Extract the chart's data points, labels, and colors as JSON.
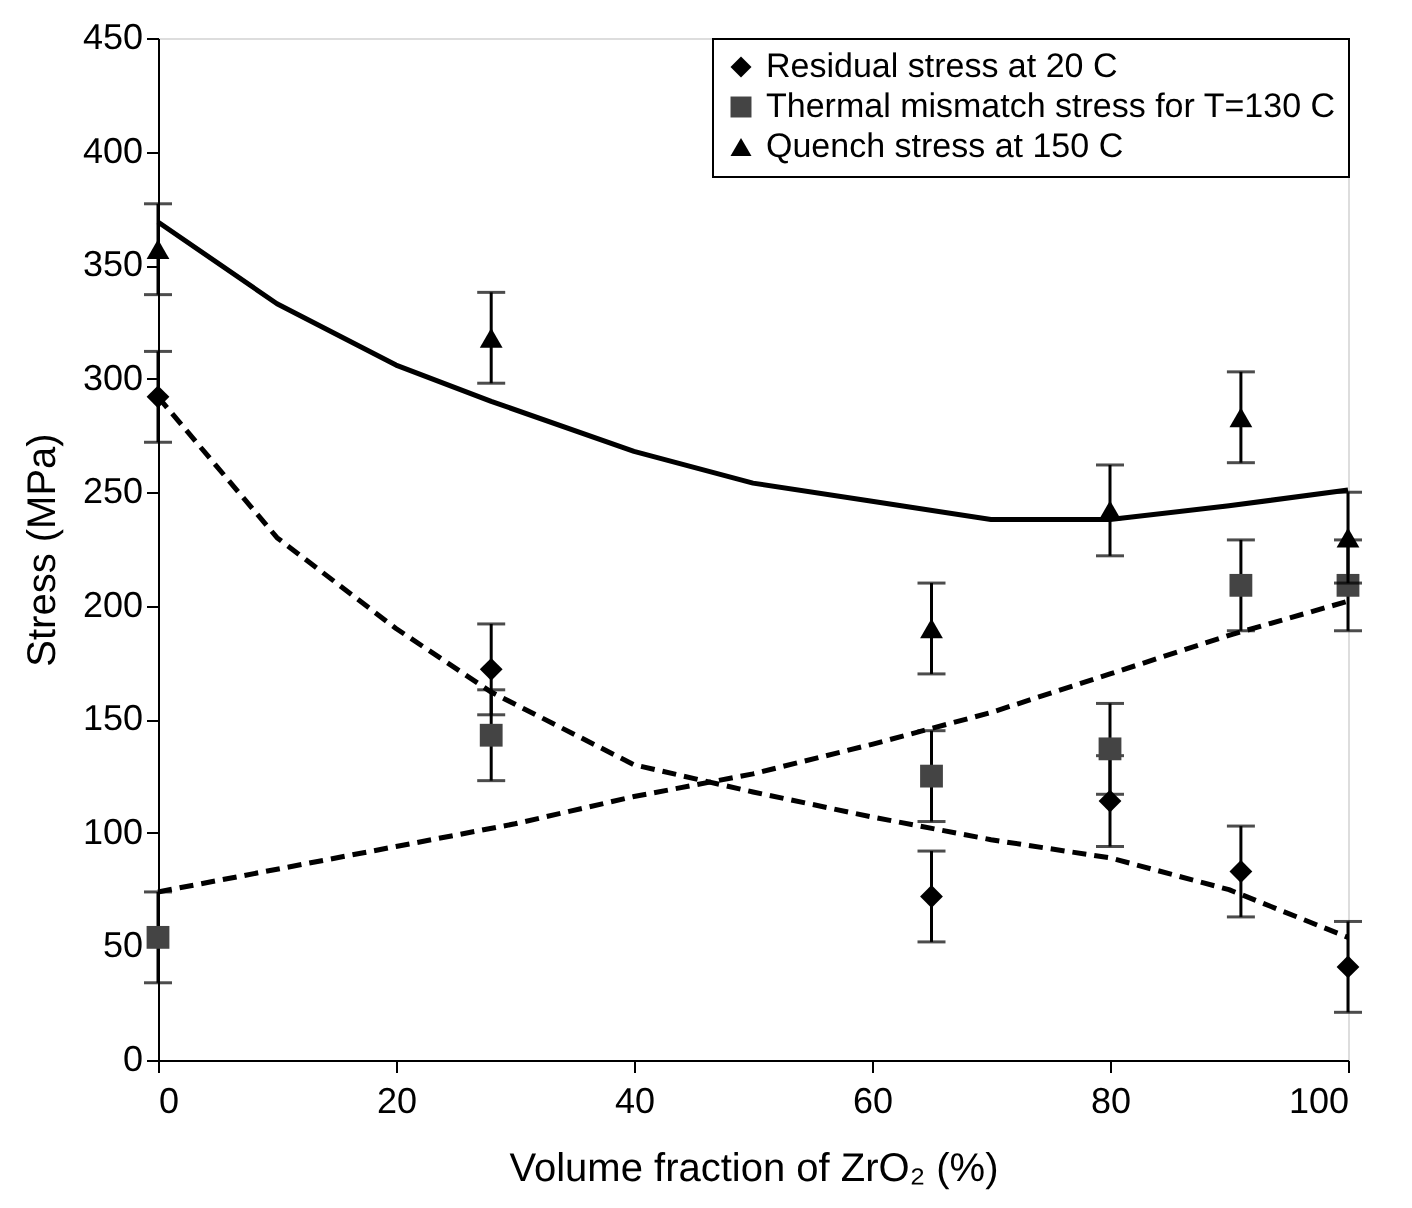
{
  "chart_data": {
    "type": "scatter",
    "xlabel": "Volume fraction of ZrO₂ (%)",
    "ylabel": "Stress (MPa)",
    "xlim": [
      0,
      100
    ],
    "xticks": [
      0,
      20,
      40,
      60,
      80,
      100
    ],
    "ylim": [
      0,
      450
    ],
    "yticks": [
      0,
      50,
      100,
      150,
      200,
      250,
      300,
      350,
      400,
      450
    ],
    "grid": false,
    "legend": "top right",
    "series": [
      {
        "name": "Residual stress at 20 C",
        "marker": "diamond",
        "color": "#000000",
        "x": [
          0,
          28,
          65,
          80,
          91,
          100
        ],
        "values": [
          292,
          172,
          72,
          114,
          83,
          41
        ],
        "errors": [
          20,
          20,
          20,
          20,
          20,
          20
        ]
      },
      {
        "name": "Thermal mismatch stress for T=130 C",
        "marker": "square",
        "color": "#444444",
        "x": [
          0,
          28,
          65,
          80,
          91,
          100
        ],
        "values": [
          54,
          143,
          125,
          137,
          209,
          209
        ],
        "errors": [
          20,
          20,
          20,
          20,
          20,
          20
        ]
      },
      {
        "name": "Quench stress at 150 C",
        "marker": "triangle",
        "color": "#000000",
        "x": [
          0,
          28,
          65,
          80,
          91,
          100
        ],
        "values": [
          357,
          318,
          190,
          242,
          283,
          230
        ],
        "errors": [
          20,
          20,
          20,
          20,
          20,
          20
        ]
      },
      {
        "type": "line",
        "marker": "none",
        "line_style": "dashed",
        "color": "#000000",
        "x": [
          0,
          10,
          20,
          28,
          40,
          50,
          60,
          70,
          80,
          90,
          100
        ],
        "values": [
          292,
          230,
          190,
          162,
          130,
          118,
          107,
          97,
          89,
          75,
          54
        ]
      },
      {
        "type": "line",
        "marker": "none",
        "line_style": "dashed",
        "color": "#000000",
        "x": [
          0,
          10,
          20,
          30,
          40,
          50,
          60,
          70,
          80,
          90,
          100
        ],
        "values": [
          74,
          84,
          94,
          104,
          116,
          126,
          139,
          153,
          170,
          187,
          202
        ]
      },
      {
        "type": "line",
        "marker": "none",
        "line_style": "solid",
        "color": "#000000",
        "x": [
          0,
          10,
          20,
          28,
          40,
          50,
          60,
          70,
          80,
          90,
          100
        ],
        "values": [
          369,
          333,
          306,
          290,
          268,
          254,
          246,
          238,
          238,
          244,
          251
        ]
      }
    ]
  }
}
